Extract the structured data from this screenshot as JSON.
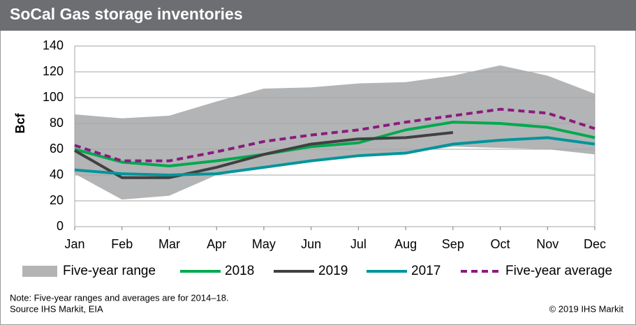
{
  "chart_data": {
    "type": "line",
    "title": "SoCal Gas storage inventories",
    "ylabel": "Bcf",
    "categories": [
      "Jan",
      "Feb",
      "Mar",
      "Apr",
      "May",
      "Jun",
      "Jul",
      "Aug",
      "Sep",
      "Oct",
      "Nov",
      "Dec"
    ],
    "range": {
      "name": "Five-year range",
      "color": "#b3b4b6",
      "lower": [
        41,
        21,
        24,
        40,
        46,
        51,
        54,
        57,
        62,
        61,
        60,
        56
      ],
      "upper": [
        87,
        84,
        86,
        97,
        107,
        108,
        111,
        112,
        117,
        125,
        117,
        103
      ]
    },
    "series": [
      {
        "name": "2018",
        "color": "#00a94f",
        "values": [
          60,
          50,
          47,
          51,
          56,
          62,
          65,
          75,
          81,
          80,
          77,
          69
        ]
      },
      {
        "name": "2019",
        "color": "#404041",
        "values": [
          59,
          38,
          38,
          46,
          56,
          64,
          68,
          69,
          73,
          null,
          null,
          null
        ]
      },
      {
        "name": "2017",
        "color": "#00959a",
        "values": [
          44,
          41,
          40,
          41,
          46,
          51,
          55,
          57,
          64,
          67,
          69,
          64
        ]
      },
      {
        "name": "Five-year average",
        "color": "#8b1a7e",
        "dashed": true,
        "values": [
          63,
          51,
          51,
          58,
          66,
          71,
          75,
          81,
          86,
          91,
          88,
          76
        ]
      }
    ],
    "ylim": [
      0,
      140
    ],
    "yticks": [
      0,
      20,
      40,
      60,
      80,
      100,
      120,
      140
    ],
    "grid": true,
    "note": "Note: Five-year ranges and averages are for 2014–18.",
    "source": "Source IHS Markit, EIA",
    "copyright": "© 2019 IHS Markit"
  }
}
